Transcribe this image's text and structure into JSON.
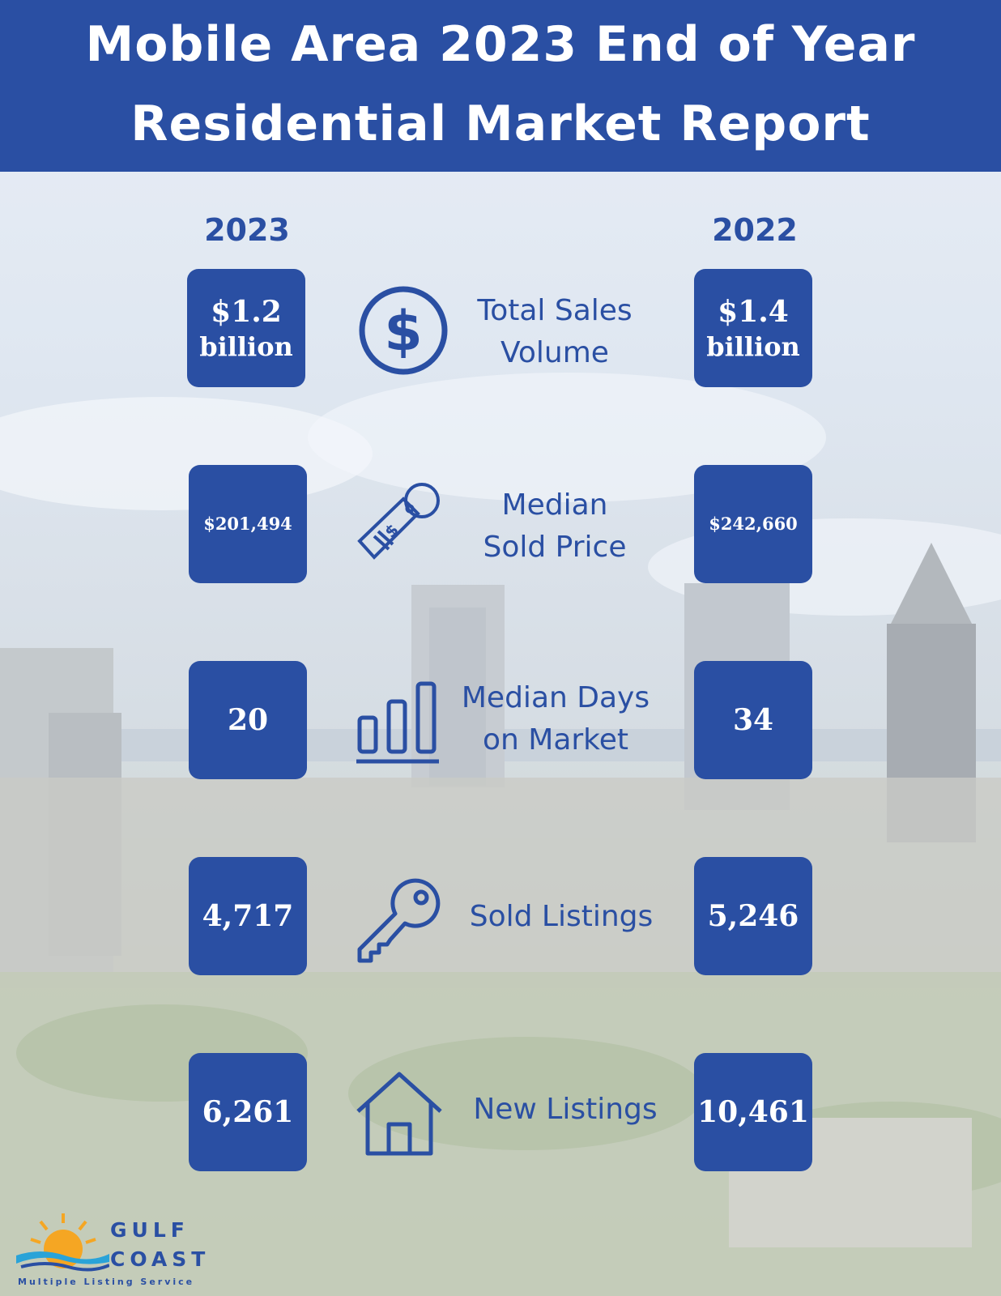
{
  "header": {
    "title_line1": "Mobile Area 2023 End of Year",
    "title_line2": "Residential Market Report"
  },
  "years": {
    "left": "2023",
    "right": "2022"
  },
  "metrics": [
    {
      "label_line1": "Total Sales",
      "label_line2": "Volume",
      "value_2023_line1": "$1.2",
      "value_2023_line2": "billion",
      "value_2022_line1": "$1.4",
      "value_2022_line2": "billion",
      "icon": "dollar-circle-icon"
    },
    {
      "label_line1": "Median",
      "label_line2": "Sold Price",
      "value_2023": "$201,494",
      "value_2022": "$242,660",
      "icon": "price-tag-icon"
    },
    {
      "label_line1": "Median Days",
      "label_line2": "on Market",
      "value_2023": "20",
      "value_2022": "34",
      "icon": "bar-chart-icon"
    },
    {
      "label": "Sold Listings",
      "value_2023": "4,717",
      "value_2022": "5,246",
      "icon": "key-icon"
    },
    {
      "label": "New Listings",
      "value_2023": "6,261",
      "value_2022": "10,461",
      "icon": "house-icon"
    }
  ],
  "logo": {
    "line1": "GULF",
    "line2": "COAST",
    "tagline": "Multiple Listing Service"
  },
  "colors": {
    "brand_blue": "#2a4fa3",
    "white": "#ffffff"
  }
}
